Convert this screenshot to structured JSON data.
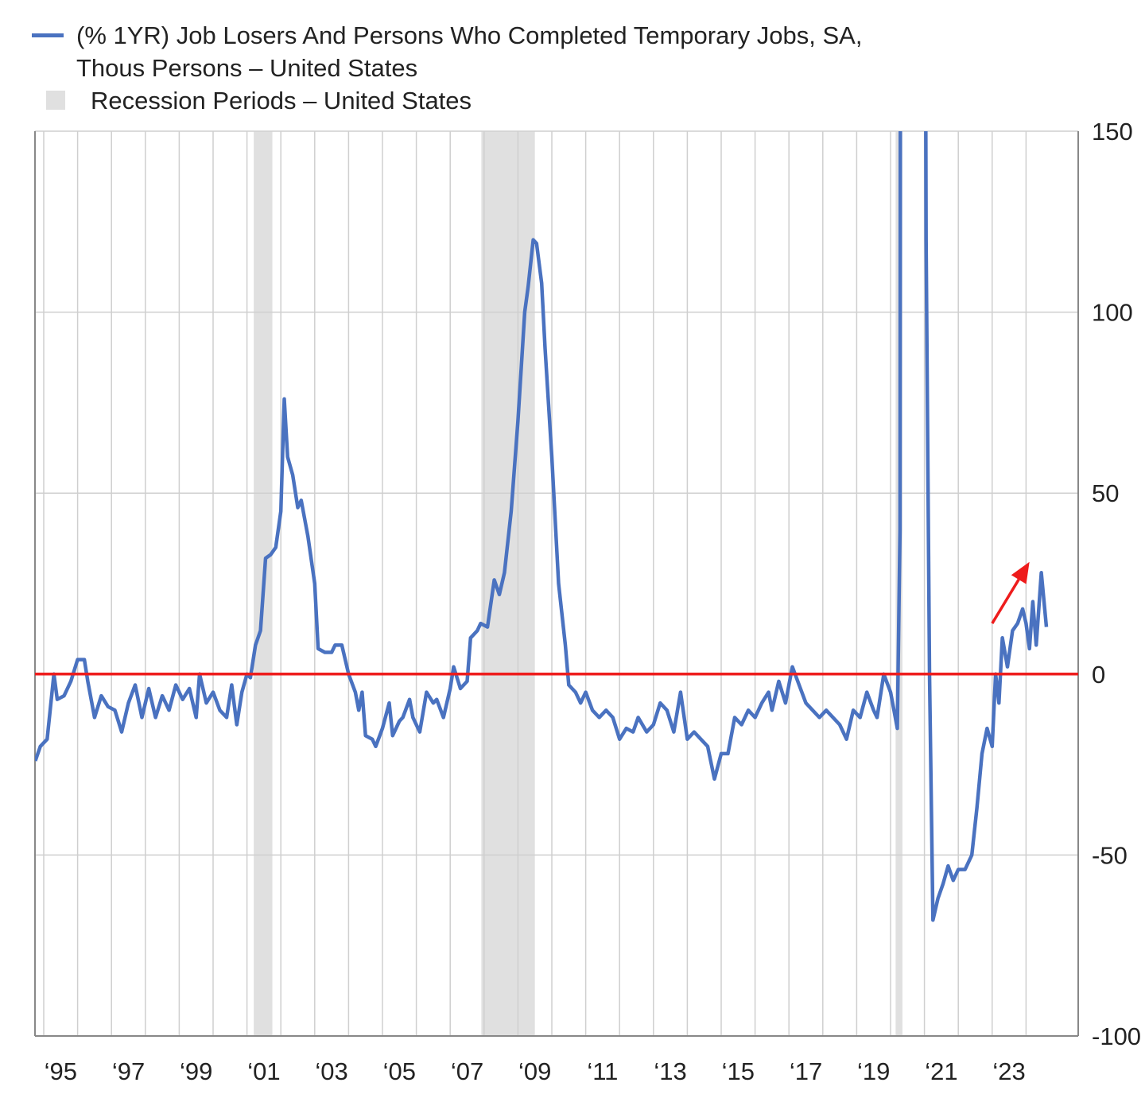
{
  "chart_data": {
    "type": "line",
    "title": "",
    "xlabel": "",
    "ylabel": "",
    "ylim": [
      -100,
      150
    ],
    "xlim": [
      1994.75,
      2024.95
    ],
    "grid": true,
    "legend_placement": "top-left",
    "legend": [
      {
        "label": "(% 1YR) Job Losers And Persons Who Completed Temporary Jobs, SA, Thous Persons – United States",
        "color": "#4a72c0",
        "kind": "line"
      },
      {
        "label": "Recession Periods – United States",
        "color": "#e0e0e0",
        "kind": "area"
      }
    ],
    "x_ticks": [
      {
        "year": 1995,
        "label": "‘95"
      },
      {
        "year": 1997,
        "label": "‘97"
      },
      {
        "year": 1999,
        "label": "‘99"
      },
      {
        "year": 2001,
        "label": "‘01"
      },
      {
        "year": 2003,
        "label": "‘03"
      },
      {
        "year": 2005,
        "label": "‘05"
      },
      {
        "year": 2007,
        "label": "‘07"
      },
      {
        "year": 2009,
        "label": "‘09"
      },
      {
        "year": 2011,
        "label": "‘11"
      },
      {
        "year": 2013,
        "label": "‘13"
      },
      {
        "year": 2015,
        "label": "‘15"
      },
      {
        "year": 2017,
        "label": "‘17"
      },
      {
        "year": 2019,
        "label": "‘19"
      },
      {
        "year": 2021,
        "label": "‘21"
      },
      {
        "year": 2023,
        "label": "‘23"
      }
    ],
    "y_ticks": [
      {
        "value": 150,
        "label": "150"
      },
      {
        "value": 100,
        "label": "100"
      },
      {
        "value": 50,
        "label": "50"
      },
      {
        "value": 0,
        "label": "0"
      },
      {
        "value": -50,
        "label": "-50"
      },
      {
        "value": -100,
        "label": "-100"
      }
    ],
    "recessions": [
      [
        2001.2,
        2001.75
      ],
      [
        2007.92,
        2009.5
      ],
      [
        2020.15,
        2020.35
      ]
    ],
    "reference_line": {
      "value": 0,
      "color": "#ee1c1c"
    },
    "annotation_arrow": {
      "from": [
        2023.0,
        14
      ],
      "to": [
        2024.1,
        31
      ],
      "color": "#ee1c1c"
    },
    "series": [
      {
        "name": "(% 1YR) Job Losers And Persons Who Completed Temporary Jobs, SA, Thous Persons",
        "color": "#4a72c0",
        "x": [
          1994.75,
          1994.9,
          1995.1,
          1995.3,
          1995.4,
          1995.6,
          1995.8,
          1996.0,
          1996.2,
          1996.3,
          1996.5,
          1996.7,
          1996.9,
          1997.1,
          1997.3,
          1997.5,
          1997.7,
          1997.9,
          1998.1,
          1998.3,
          1998.5,
          1998.7,
          1998.9,
          1999.1,
          1999.3,
          1999.5,
          1999.6,
          1999.8,
          2000.0,
          2000.2,
          2000.4,
          2000.55,
          2000.7,
          2000.85,
          2001.0,
          2001.1,
          2001.25,
          2001.4,
          2001.55,
          2001.7,
          2001.85,
          2002.0,
          2002.1,
          2002.2,
          2002.35,
          2002.5,
          2002.6,
          2002.8,
          2003.0,
          2003.1,
          2003.3,
          2003.5,
          2003.6,
          2003.8,
          2004.0,
          2004.2,
          2004.3,
          2004.4,
          2004.5,
          2004.7,
          2004.8,
          2005.0,
          2005.2,
          2005.3,
          2005.5,
          2005.6,
          2005.8,
          2005.9,
          2006.1,
          2006.3,
          2006.5,
          2006.6,
          2006.8,
          2007.0,
          2007.1,
          2007.3,
          2007.5,
          2007.6,
          2007.8,
          2007.9,
          2008.1,
          2008.3,
          2008.45,
          2008.6,
          2008.8,
          2009.0,
          2009.2,
          2009.3,
          2009.45,
          2009.55,
          2009.7,
          2009.8,
          2010.0,
          2010.2,
          2010.4,
          2010.5,
          2010.7,
          2010.85,
          2011.0,
          2011.2,
          2011.4,
          2011.6,
          2011.8,
          2012.0,
          2012.2,
          2012.4,
          2012.55,
          2012.8,
          2013.0,
          2013.2,
          2013.4,
          2013.6,
          2013.8,
          2014.0,
          2014.2,
          2014.4,
          2014.6,
          2014.8,
          2015.0,
          2015.2,
          2015.4,
          2015.6,
          2015.8,
          2016.0,
          2016.2,
          2016.4,
          2016.5,
          2016.7,
          2016.9,
          2017.1,
          2017.3,
          2017.5,
          2017.7,
          2017.9,
          2018.1,
          2018.3,
          2018.5,
          2018.7,
          2018.9,
          2019.1,
          2019.3,
          2019.5,
          2019.6,
          2019.8,
          2020.0,
          2020.1,
          2020.2,
          2020.28,
          2020.3,
          2021.0,
          2021.05,
          2021.15,
          2021.25,
          2021.4,
          2021.55,
          2021.7,
          2021.85,
          2022.0,
          2022.2,
          2022.4,
          2022.55,
          2022.7,
          2022.85,
          2023.0,
          2023.1,
          2023.2,
          2023.3,
          2023.45,
          2023.6,
          2023.75,
          2023.9,
          2024.0,
          2024.1,
          2024.2,
          2024.3,
          2024.45,
          2024.6
        ],
        "y": [
          -24,
          -20,
          -18,
          0,
          -7,
          -6,
          -2,
          4,
          4,
          -2,
          -12,
          -6,
          -9,
          -10,
          -16,
          -8,
          -3,
          -12,
          -4,
          -12,
          -6,
          -10,
          -3,
          -7,
          -4,
          -12,
          0,
          -8,
          -5,
          -10,
          -12,
          -3,
          -14,
          -5,
          0,
          -1,
          8,
          12,
          32,
          33,
          35,
          45,
          76,
          60,
          55,
          46,
          48,
          38,
          25,
          7,
          6,
          6,
          8,
          8,
          0,
          -5,
          -10,
          -5,
          -17,
          -18,
          -20,
          -15,
          -8,
          -17,
          -13,
          -12,
          -7,
          -12,
          -16,
          -5,
          -8,
          -7,
          -12,
          -4,
          2,
          -4,
          -2,
          10,
          12,
          14,
          13,
          26,
          22,
          28,
          45,
          70,
          100,
          107,
          120,
          119,
          108,
          90,
          60,
          25,
          8,
          -3,
          -5,
          -8,
          -5,
          -10,
          -12,
          -10,
          -12,
          -18,
          -15,
          -16,
          -12,
          -16,
          -14,
          -8,
          -10,
          -16,
          -5,
          -18,
          -16,
          -18,
          -20,
          -29,
          -22,
          -22,
          -12,
          -14,
          -10,
          -12,
          -8,
          -5,
          -10,
          -2,
          -8,
          2,
          -3,
          -8,
          -10,
          -12,
          -10,
          -12,
          -14,
          -18,
          -10,
          -12,
          -5,
          -10,
          -12,
          0,
          -5,
          -10,
          -15,
          40,
          300,
          300,
          120,
          0,
          -68,
          -62,
          -58,
          -53,
          -57,
          -54,
          -54,
          -50,
          -37,
          -22,
          -15,
          -20,
          0,
          -8,
          10,
          2,
          12,
          14,
          18,
          14,
          7,
          20,
          8,
          28,
          13
        ]
      }
    ]
  }
}
